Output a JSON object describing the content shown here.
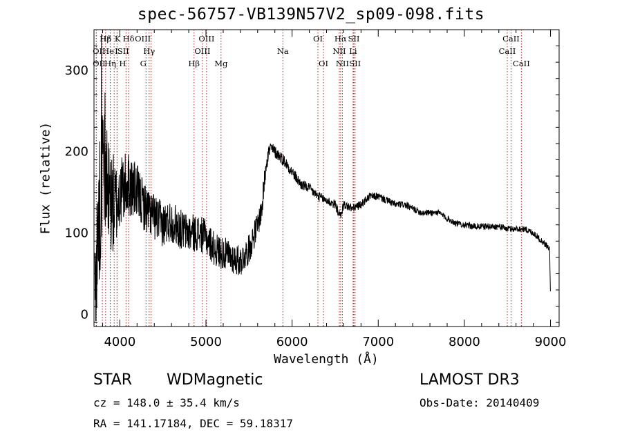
{
  "chart_data": {
    "type": "line",
    "title": "spec-56757-VB139N57V2_sp09-098.fits",
    "xlabel": "Wavelength (Å)",
    "ylabel": "Flux (relative)",
    "xlim": [
      3700,
      9100
    ],
    "ylim": [
      -15,
      350
    ],
    "x_ticks": [
      4000,
      5000,
      6000,
      7000,
      8000,
      9000
    ],
    "y_ticks": [
      0,
      100,
      200,
      300
    ],
    "line_color": "#000000",
    "marker_color": "#b22222",
    "spectrum_anchors": {
      "x": [
        3710,
        3760,
        3800,
        3850,
        3900,
        3950,
        4000,
        4100,
        4200,
        4300,
        4400,
        4500,
        4600,
        4700,
        4800,
        4900,
        5000,
        5100,
        5200,
        5300,
        5400,
        5500,
        5600,
        5650,
        5700,
        5750,
        5800,
        5900,
        6000,
        6100,
        6200,
        6300,
        6400,
        6500,
        6560,
        6600,
        6700,
        6800,
        6900,
        7000,
        7100,
        7200,
        7300,
        7400,
        7500,
        7600,
        7700,
        7800,
        7900,
        8000,
        8100,
        8200,
        8300,
        8400,
        8500,
        8600,
        8700,
        8800,
        8900,
        8950,
        8990,
        9000
      ],
      "y": [
        20,
        120,
        180,
        150,
        140,
        130,
        150,
        160,
        150,
        130,
        120,
        110,
        115,
        105,
        100,
        100,
        95,
        80,
        75,
        70,
        65,
        80,
        110,
        130,
        190,
        205,
        200,
        190,
        175,
        160,
        155,
        145,
        140,
        135,
        120,
        135,
        130,
        135,
        145,
        145,
        140,
        135,
        135,
        130,
        125,
        125,
        125,
        118,
        112,
        110,
        108,
        108,
        108,
        108,
        105,
        105,
        105,
        100,
        90,
        85,
        80,
        20
      ]
    },
    "noise_anchors": {
      "x": [
        3700,
        3800,
        3900,
        4000,
        4300,
        4700,
        5000,
        5300,
        5500,
        5700,
        5750,
        6000,
        6400,
        6800,
        7500,
        8500,
        9000
      ],
      "amp": [
        90,
        85,
        70,
        45,
        30,
        25,
        22,
        20,
        18,
        15,
        8,
        7,
        6,
        5,
        4,
        4,
        4
      ]
    },
    "lines": [
      {
        "label": "Hε",
        "lambda": 3797,
        "row": 0,
        "dx": 4
      },
      {
        "label": "OII",
        "lambda": 3727,
        "row": 1,
        "dx": 4
      },
      {
        "label": "OII",
        "lambda": 3727,
        "row": 2,
        "dx": 4
      },
      {
        "label": "Hβ",
        "lambda": 3835,
        "row": 0,
        "dx": 0
      },
      {
        "label": "He",
        "lambda": 3889,
        "row": 1,
        "dx": -3
      },
      {
        "label": "Hη",
        "lambda": 3889,
        "row": 2,
        "dx": 0
      },
      {
        "label": "K",
        "lambda": 3934,
        "row": 0,
        "dx": 5
      },
      {
        "label": "H",
        "lambda": 3968,
        "row": 2,
        "dx": 8
      },
      {
        "label": "I",
        "lambda": 3968,
        "row": 1,
        "dx": -1
      },
      {
        "label": "SII",
        "lambda": 4072,
        "row": 1,
        "dx": -4
      },
      {
        "label": "Hδ",
        "lambda": 4102,
        "row": 0,
        "dx": 0
      },
      {
        "label": "OIII",
        "lambda": 4363,
        "row": 0,
        "dx": -12
      },
      {
        "label": "Hγ",
        "lambda": 4340,
        "row": 1,
        "dx": 0
      },
      {
        "label": "G",
        "lambda": 4304,
        "row": 2,
        "dx": -4
      },
      {
        "label": "Hβ",
        "lambda": 4861,
        "row": 2,
        "dx": 0
      },
      {
        "label": "OIII",
        "lambda": 5007,
        "row": 0,
        "dx": 0
      },
      {
        "label": "OIII",
        "lambda": 4959,
        "row": 1,
        "dx": 0
      },
      {
        "label": "Mg",
        "lambda": 5175,
        "row": 2,
        "dx": 0
      },
      {
        "label": "Na",
        "lambda": 5893,
        "row": 1,
        "dx": 0
      },
      {
        "label": "OI",
        "lambda": 6300,
        "row": 0,
        "dx": 0
      },
      {
        "label": "OI",
        "lambda": 6364,
        "row": 2,
        "dx": 0
      },
      {
        "label": "Hα",
        "lambda": 6563,
        "row": 0,
        "dx": 0
      },
      {
        "label": "SII",
        "lambda": 6717,
        "row": 0,
        "dx": 0
      },
      {
        "label": "NII",
        "lambda": 6548,
        "row": 1,
        "dx": 0
      },
      {
        "label": "Li",
        "lambda": 6708,
        "row": 1,
        "dx": 0
      },
      {
        "label": "NII",
        "lambda": 6584,
        "row": 2,
        "dx": 0
      },
      {
        "label": "SII",
        "lambda": 6731,
        "row": 2,
        "dx": 0
      },
      {
        "label": "CaII",
        "lambda": 8542,
        "row": 0,
        "dx": 0
      },
      {
        "label": "CaII",
        "lambda": 8498,
        "row": 1,
        "dx": 0
      },
      {
        "label": "CaII",
        "lambda": 8662,
        "row": 2,
        "dx": 0
      }
    ]
  },
  "info": {
    "class_label": "STAR",
    "subclass_label": "WDMagnetic",
    "survey_label": "LAMOST DR3",
    "cz_text": "cz = 148.0 ± 35.4 km/s",
    "obs_date_text": "Obs-Date: 20140409",
    "coords_text": "RA = 141.17184, DEC =  59.18317"
  }
}
